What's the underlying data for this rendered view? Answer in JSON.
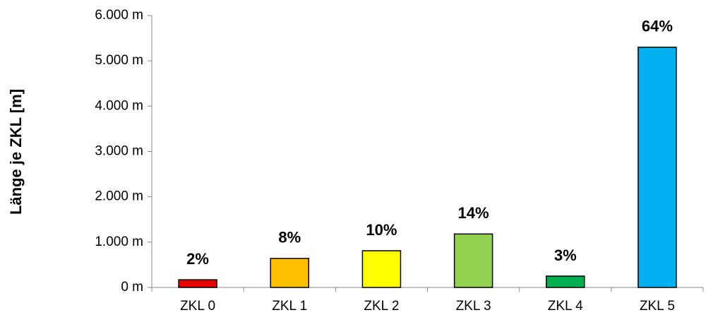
{
  "chart_data": {
    "type": "bar",
    "y_label": "Länge je ZKL [m]",
    "categories": [
      "ZKL 0",
      "ZKL 1",
      "ZKL 2",
      "ZKL 3",
      "ZKL 4",
      "ZKL 5"
    ],
    "values": [
      170,
      640,
      810,
      1180,
      250,
      5300
    ],
    "percent_labels": [
      "2%",
      "8%",
      "10%",
      "14%",
      "3%",
      "64%"
    ],
    "colors": [
      "#e60000",
      "#ffc000",
      "#ffff00",
      "#92d050",
      "#00b050",
      "#00b0f0"
    ],
    "ylim": [
      0,
      6000
    ],
    "yticks": [
      {
        "value": 0,
        "label": "0 m"
      },
      {
        "value": 1000,
        "label": "1.000 m"
      },
      {
        "value": 2000,
        "label": "2.000 m"
      },
      {
        "value": 3000,
        "label": "3.000 m"
      },
      {
        "value": 4000,
        "label": "4.000 m"
      },
      {
        "value": 5000,
        "label": "5.000 m"
      },
      {
        "value": 6000,
        "label": "6.000 m"
      }
    ]
  }
}
